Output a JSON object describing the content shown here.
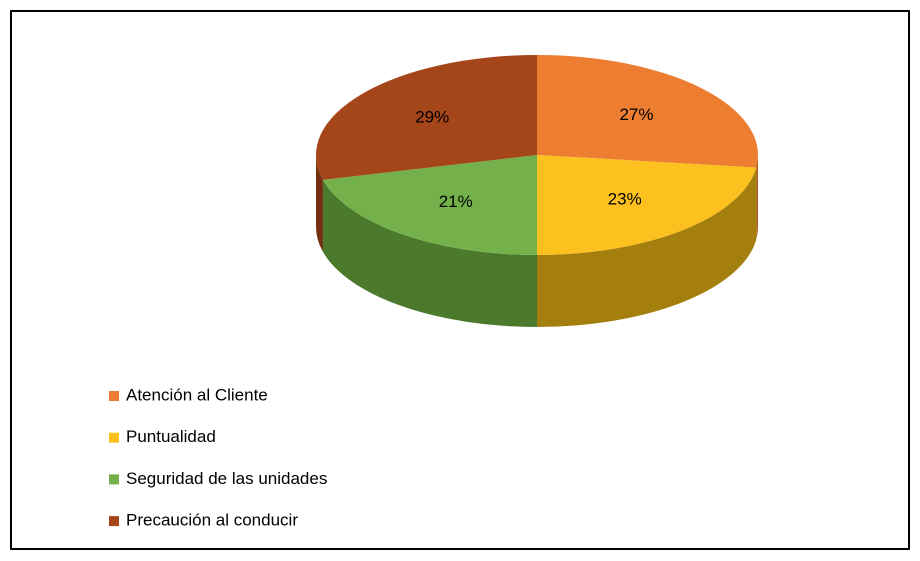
{
  "chart_data": {
    "type": "pie",
    "categories": [
      "Atención al Cliente",
      "Puntualidad",
      "Seguridad de las unidades",
      "Precaución al conducir"
    ],
    "values": [
      27,
      23,
      21,
      29
    ],
    "value_labels": [
      "27%",
      "23%",
      "21%",
      "29%"
    ],
    "colors": [
      "#ed7d31",
      "#fcc01f",
      "#74b14a",
      "#a5461a"
    ],
    "side_colors": [
      "#b05a1c",
      "#a57f0e",
      "#4c7a2c",
      "#72300f"
    ],
    "legend": "bottom-left"
  }
}
